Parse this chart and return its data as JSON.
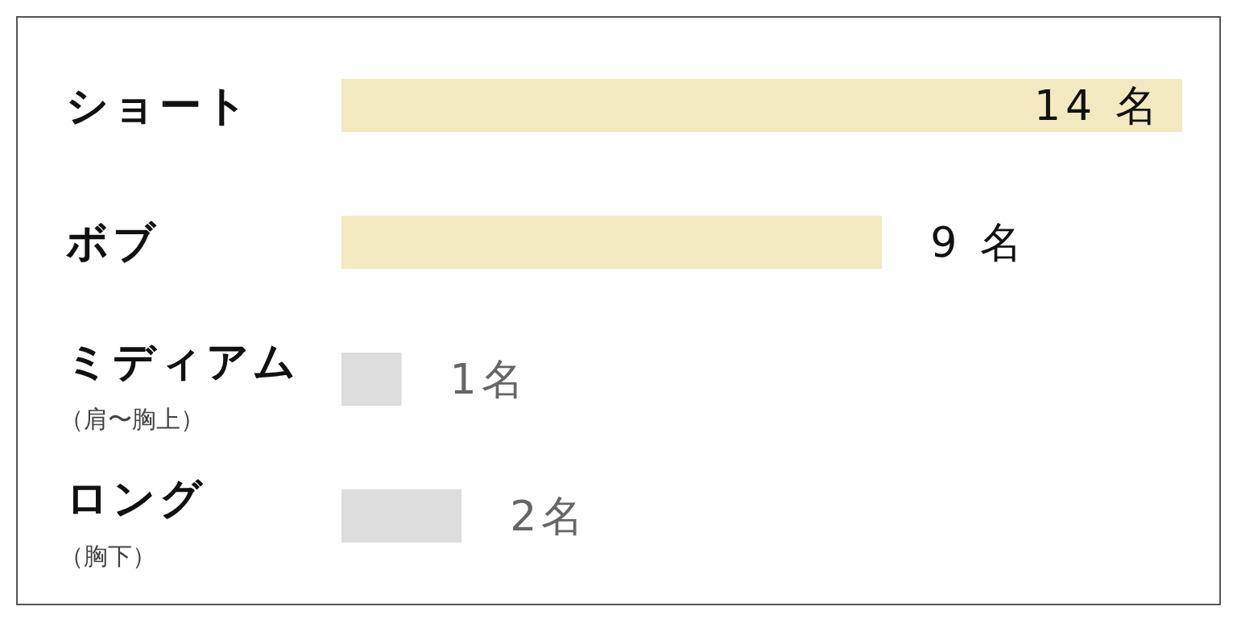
{
  "chart_data": {
    "type": "bar",
    "orientation": "horizontal",
    "categories": [
      "ショート",
      "ボブ",
      "ミディアム（肩〜胸上）",
      "ロング（胸下）"
    ],
    "values": [
      14,
      9,
      1,
      2
    ],
    "colors": [
      "#f3e9c1",
      "#f3e9c1",
      "#dddddd",
      "#dddddd"
    ],
    "value_labels": [
      "14 名",
      "9 名",
      "1名",
      "2名"
    ],
    "grid": false,
    "legend": false
  }
}
